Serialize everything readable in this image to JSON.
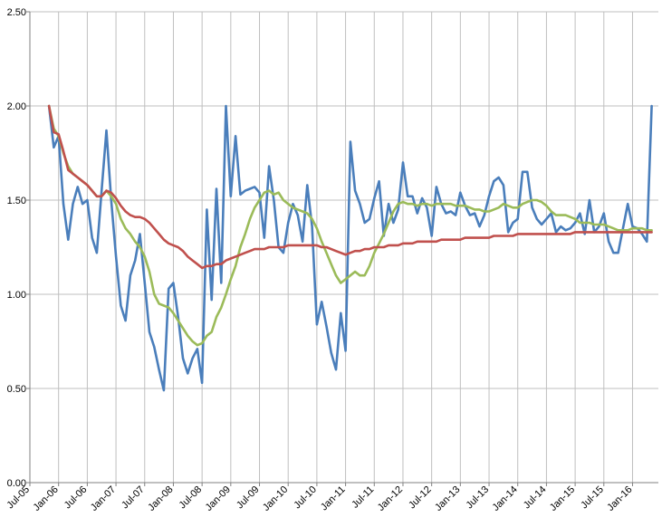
{
  "chart_data": {
    "type": "line",
    "title": "",
    "xlabel": "",
    "ylabel": "",
    "ylim": [
      0,
      2.5
    ],
    "y_ticks": [
      "0.00",
      "0.50",
      "1.00",
      "1.50",
      "2.00",
      "2.50"
    ],
    "x_ticks": [
      "Jul-05",
      "Jan-06",
      "Jul-06",
      "Jan-07",
      "Jul-07",
      "Jan-08",
      "Jul-08",
      "Jan-09",
      "Jul-09",
      "Jan-10",
      "Jul-10",
      "Jan-11",
      "Jul-11",
      "Jan-12",
      "Jul-12",
      "Jan-13",
      "Jul-13",
      "Jan-14",
      "Jul-14",
      "Jan-15",
      "Jul-15",
      "Jan-16"
    ],
    "grid": true,
    "legend": "none",
    "x_start": "2005-07",
    "series": [
      {
        "color": "#4a7ebb",
        "start": "2005-11",
        "values": [
          2.0,
          1.78,
          1.84,
          1.48,
          1.29,
          1.48,
          1.57,
          1.48,
          1.5,
          1.3,
          1.22,
          1.55,
          1.87,
          1.5,
          1.2,
          0.94,
          0.86,
          1.1,
          1.18,
          1.32,
          1.06,
          0.8,
          0.72,
          0.6,
          0.49,
          1.03,
          1.06,
          0.88,
          0.66,
          0.58,
          0.66,
          0.71,
          0.53,
          1.45,
          0.97,
          1.56,
          1.06,
          2.0,
          1.52,
          1.84,
          1.53,
          1.55,
          1.56,
          1.57,
          1.54,
          1.3,
          1.68,
          1.5,
          1.25,
          1.22,
          1.38,
          1.48,
          1.42,
          1.28,
          1.58,
          1.36,
          0.84,
          0.96,
          0.83,
          0.69,
          0.6,
          0.9,
          0.7,
          1.81,
          1.55,
          1.48,
          1.38,
          1.4,
          1.51,
          1.6,
          1.31,
          1.48,
          1.38,
          1.45,
          1.7,
          1.52,
          1.52,
          1.43,
          1.51,
          1.46,
          1.31,
          1.57,
          1.48,
          1.43,
          1.44,
          1.42,
          1.54,
          1.47,
          1.42,
          1.43,
          1.36,
          1.42,
          1.52,
          1.6,
          1.62,
          1.58,
          1.33,
          1.38,
          1.4,
          1.65,
          1.65,
          1.46,
          1.4,
          1.37,
          1.4,
          1.43,
          1.33,
          1.36,
          1.34,
          1.35,
          1.38,
          1.43,
          1.32,
          1.5,
          1.33,
          1.36,
          1.43,
          1.28,
          1.22,
          1.22,
          1.35,
          1.48,
          1.36,
          1.35,
          1.32,
          1.28,
          2.0
        ]
      },
      {
        "color": "#9bbb59",
        "start": "2005-11",
        "values": [
          2.0,
          1.88,
          1.84,
          1.75,
          1.68,
          1.64,
          1.62,
          1.6,
          1.58,
          1.55,
          1.52,
          1.52,
          1.55,
          1.52,
          1.48,
          1.4,
          1.35,
          1.32,
          1.28,
          1.25,
          1.2,
          1.12,
          1.0,
          0.95,
          0.94,
          0.93,
          0.9,
          0.86,
          0.82,
          0.78,
          0.75,
          0.73,
          0.74,
          0.78,
          0.8,
          0.88,
          0.93,
          1.0,
          1.08,
          1.15,
          1.25,
          1.32,
          1.4,
          1.46,
          1.5,
          1.54,
          1.55,
          1.53,
          1.54,
          1.5,
          1.48,
          1.46,
          1.45,
          1.44,
          1.43,
          1.4,
          1.35,
          1.28,
          1.22,
          1.16,
          1.1,
          1.06,
          1.08,
          1.1,
          1.12,
          1.1,
          1.1,
          1.15,
          1.22,
          1.27,
          1.32,
          1.38,
          1.44,
          1.48,
          1.49,
          1.48,
          1.48,
          1.47,
          1.48,
          1.48,
          1.47,
          1.48,
          1.48,
          1.48,
          1.48,
          1.47,
          1.47,
          1.47,
          1.46,
          1.45,
          1.45,
          1.44,
          1.44,
          1.45,
          1.46,
          1.48,
          1.47,
          1.46,
          1.46,
          1.48,
          1.49,
          1.5,
          1.5,
          1.49,
          1.47,
          1.44,
          1.42,
          1.42,
          1.42,
          1.41,
          1.4,
          1.38,
          1.38,
          1.38,
          1.37,
          1.37,
          1.37,
          1.36,
          1.35,
          1.34,
          1.34,
          1.34,
          1.35,
          1.35,
          1.35,
          1.34,
          1.34
        ]
      },
      {
        "color": "#c0504d",
        "start": "2005-11",
        "values": [
          2.0,
          1.86,
          1.85,
          1.76,
          1.66,
          1.64,
          1.62,
          1.6,
          1.58,
          1.55,
          1.52,
          1.52,
          1.55,
          1.54,
          1.51,
          1.47,
          1.44,
          1.42,
          1.41,
          1.41,
          1.4,
          1.38,
          1.35,
          1.32,
          1.29,
          1.27,
          1.26,
          1.25,
          1.23,
          1.2,
          1.18,
          1.16,
          1.14,
          1.15,
          1.15,
          1.16,
          1.16,
          1.18,
          1.19,
          1.2,
          1.21,
          1.22,
          1.23,
          1.24,
          1.24,
          1.24,
          1.25,
          1.25,
          1.25,
          1.25,
          1.26,
          1.26,
          1.26,
          1.26,
          1.26,
          1.26,
          1.26,
          1.25,
          1.25,
          1.24,
          1.23,
          1.22,
          1.21,
          1.22,
          1.23,
          1.23,
          1.24,
          1.24,
          1.25,
          1.25,
          1.25,
          1.26,
          1.26,
          1.26,
          1.27,
          1.27,
          1.27,
          1.28,
          1.28,
          1.28,
          1.28,
          1.28,
          1.29,
          1.29,
          1.29,
          1.29,
          1.29,
          1.3,
          1.3,
          1.3,
          1.3,
          1.3,
          1.3,
          1.31,
          1.31,
          1.31,
          1.31,
          1.31,
          1.32,
          1.32,
          1.32,
          1.32,
          1.32,
          1.32,
          1.32,
          1.32,
          1.32,
          1.32,
          1.32,
          1.32,
          1.33,
          1.33,
          1.33,
          1.33,
          1.33,
          1.33,
          1.33,
          1.33,
          1.33,
          1.33,
          1.33,
          1.33,
          1.33,
          1.33,
          1.33,
          1.33,
          1.33
        ]
      }
    ]
  }
}
